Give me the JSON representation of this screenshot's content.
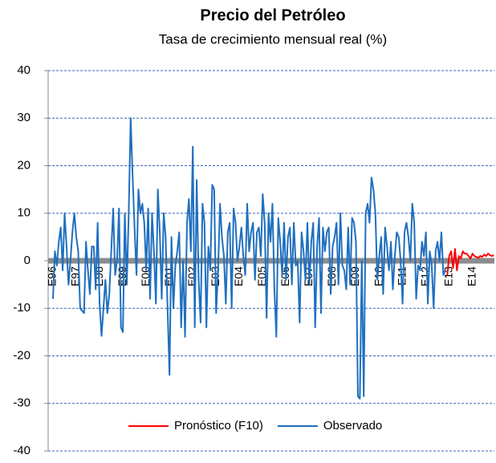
{
  "chart_data": {
    "type": "line",
    "title": "Precio del Petróleo",
    "subtitle": "Tasa de crecimiento mensual real (%)",
    "categories": [
      "E96",
      null,
      null,
      null,
      null,
      null,
      null,
      null,
      null,
      null,
      null,
      null,
      "E97",
      null,
      null,
      null,
      null,
      null,
      null,
      null,
      null,
      null,
      null,
      null,
      "E98",
      null,
      null,
      null,
      null,
      null,
      null,
      null,
      null,
      null,
      null,
      null,
      "E99",
      null,
      null,
      null,
      null,
      null,
      null,
      null,
      null,
      null,
      null,
      null,
      "E00",
      null,
      null,
      null,
      null,
      null,
      null,
      null,
      null,
      null,
      null,
      null,
      "E01",
      null,
      null,
      null,
      null,
      null,
      null,
      null,
      null,
      null,
      null,
      null,
      "E02",
      null,
      null,
      null,
      null,
      null,
      null,
      null,
      null,
      null,
      null,
      null,
      "E03",
      null,
      null,
      null,
      null,
      null,
      null,
      null,
      null,
      null,
      null,
      null,
      "E04",
      null,
      null,
      null,
      null,
      null,
      null,
      null,
      null,
      null,
      null,
      null,
      "E05",
      null,
      null,
      null,
      null,
      null,
      null,
      null,
      null,
      null,
      null,
      null,
      "E06",
      null,
      null,
      null,
      null,
      null,
      null,
      null,
      null,
      null,
      null,
      null,
      "E07",
      null,
      null,
      null,
      null,
      null,
      null,
      null,
      null,
      null,
      null,
      null,
      "E08",
      null,
      null,
      null,
      null,
      null,
      null,
      null,
      null,
      null,
      null,
      null,
      "E09",
      null,
      null,
      null,
      null,
      null,
      null,
      null,
      null,
      null,
      null,
      null,
      "E10",
      null,
      null,
      null,
      null,
      null,
      null,
      null,
      null,
      null,
      null,
      null,
      "E11",
      null,
      null,
      null,
      null,
      null,
      null,
      null,
      null,
      null,
      null,
      null,
      "E12",
      null,
      null,
      null,
      null,
      null,
      null,
      null,
      null,
      null,
      null,
      null,
      "E13",
      null,
      null,
      null,
      null,
      null,
      null,
      null,
      null,
      null,
      null,
      null,
      "E14",
      null,
      null,
      null,
      null,
      null,
      null,
      null,
      null,
      null,
      null,
      null
    ],
    "series": [
      {
        "name": "Pronóstico (F10)",
        "color": "#ff0000",
        "values": [
          null,
          null,
          null,
          null,
          null,
          null,
          null,
          null,
          null,
          null,
          null,
          null,
          null,
          null,
          null,
          null,
          null,
          null,
          null,
          null,
          null,
          null,
          null,
          null,
          null,
          null,
          null,
          null,
          null,
          null,
          null,
          null,
          null,
          null,
          null,
          null,
          null,
          null,
          null,
          null,
          null,
          null,
          null,
          null,
          null,
          null,
          null,
          null,
          null,
          null,
          null,
          null,
          null,
          null,
          null,
          null,
          null,
          null,
          null,
          null,
          null,
          null,
          null,
          null,
          null,
          null,
          null,
          null,
          null,
          null,
          null,
          null,
          null,
          null,
          null,
          null,
          null,
          null,
          null,
          null,
          null,
          null,
          null,
          null,
          null,
          null,
          null,
          null,
          null,
          null,
          null,
          null,
          null,
          null,
          null,
          null,
          null,
          null,
          null,
          null,
          null,
          null,
          null,
          null,
          null,
          null,
          null,
          null,
          null,
          null,
          null,
          null,
          null,
          null,
          null,
          null,
          null,
          null,
          null,
          null,
          null,
          null,
          null,
          null,
          null,
          null,
          null,
          null,
          null,
          null,
          null,
          null,
          null,
          null,
          null,
          null,
          null,
          null,
          null,
          null,
          null,
          null,
          null,
          null,
          null,
          null,
          null,
          null,
          null,
          null,
          null,
          null,
          null,
          null,
          null,
          null,
          null,
          null,
          null,
          null,
          null,
          null,
          null,
          null,
          null,
          null,
          null,
          null,
          null,
          null,
          null,
          null,
          null,
          null,
          null,
          null,
          null,
          null,
          null,
          null,
          null,
          null,
          null,
          null,
          null,
          null,
          null,
          null,
          null,
          null,
          null,
          null,
          null,
          null,
          null,
          null,
          null,
          null,
          null,
          null,
          null,
          null,
          null,
          -3,
          1,
          2,
          -1.5,
          2.5,
          -2,
          1,
          0.5,
          2,
          1.5,
          1.5,
          1,
          0.5,
          1.5,
          1,
          0.8,
          0.6,
          1,
          0.8,
          1.3,
          1,
          1.5,
          1.2,
          1,
          1.2
        ]
      },
      {
        "name": "Observado",
        "color": "#1f6fbf",
        "values": [
          -8,
          2,
          -1,
          4,
          7,
          -2,
          10,
          3,
          -5,
          0,
          6,
          10,
          5,
          2,
          -10,
          -10.5,
          -11,
          4,
          -2,
          -7,
          3,
          3,
          -6,
          8,
          -9,
          -15.8,
          -10,
          -4,
          -11,
          -7,
          2,
          11,
          -3,
          0,
          11,
          -14,
          -15,
          10,
          -5,
          10,
          30,
          18,
          7,
          -3,
          15,
          10,
          12,
          8,
          -2,
          11,
          -8,
          10,
          2,
          -9,
          15,
          6,
          -8,
          10,
          5,
          -10,
          -24,
          5,
          -10,
          -1,
          2,
          6,
          -14,
          0,
          -16,
          8,
          13,
          2,
          24,
          -14,
          17,
          -4,
          -13,
          12,
          8,
          -14,
          3,
          -2,
          16,
          15,
          -11,
          -2,
          12,
          5,
          1,
          -9,
          6,
          8,
          -10,
          11,
          8,
          0,
          3,
          7,
          1,
          -3,
          12,
          2,
          6,
          8,
          -4,
          6,
          7,
          1,
          14,
          8,
          -12,
          10,
          4,
          12,
          -6,
          -16,
          9,
          4,
          -3,
          8,
          -4,
          5,
          7,
          -5,
          8,
          -1,
          0,
          -13,
          6,
          2,
          -4,
          8,
          -5,
          4,
          8,
          -14,
          3,
          9,
          -11,
          7,
          2,
          6,
          7,
          -7,
          3,
          5,
          8,
          -5,
          10,
          -1,
          -2,
          -6,
          7,
          -5,
          9,
          8,
          4,
          -28.5,
          -29,
          0,
          -28.5,
          10,
          12,
          8,
          17.5,
          15,
          10,
          -4,
          1,
          5,
          -7,
          7,
          3,
          -2,
          4,
          -6,
          1,
          6,
          5,
          0,
          -9,
          6,
          8,
          5,
          0,
          12,
          8,
          -8,
          -1,
          -2,
          4,
          1,
          6,
          -9,
          2,
          -1,
          -10,
          2,
          4,
          0,
          6,
          -3,
          -2,
          null,
          null,
          null,
          null,
          null,
          null,
          null,
          null,
          null,
          null,
          null,
          null,
          null,
          null,
          null,
          null,
          null,
          null,
          null,
          null,
          null,
          null,
          null,
          null,
          null
        ]
      }
    ],
    "ylim": [
      -40,
      40
    ],
    "yticks": [
      40,
      30,
      20,
      10,
      0,
      -10,
      -20,
      -30,
      -40
    ],
    "grid": true,
    "legend": "bottom"
  }
}
